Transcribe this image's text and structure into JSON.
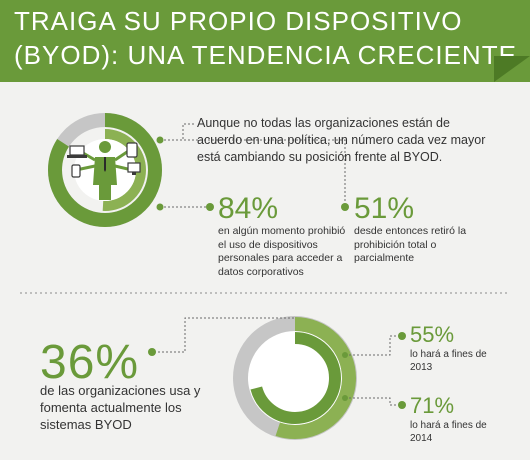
{
  "header": {
    "title_line1": "TRAIGA SU PROPIO DISPOSITIVO",
    "title_line2": "(BYOD): UNA TENDENCIA CRECIENTE"
  },
  "intro_text": "Aunque no todas las organizaciones están de acuerdo en una política, un número cada vez mayor está cambiando su posición frente al BYOD.",
  "stats": {
    "s84": {
      "value": "84%",
      "text": "en algún momento prohibió el uso de dispositivos personales para acceder a datos corporativos"
    },
    "s51": {
      "value": "51%",
      "text": "desde entonces retiró la prohibición total o parcialmente"
    },
    "s36": {
      "value": "36%",
      "text": "de las organizaciones usa y fomenta actualmente los sistemas BYOD"
    },
    "s55": {
      "value": "55%",
      "text": "lo hará a fines de 2013"
    },
    "s71": {
      "value": "71%",
      "text": "lo hará a fines de 2014"
    }
  },
  "colors": {
    "green": "#6a9a3a",
    "light_green": "#a6c46a",
    "gray": "#c6c6c6",
    "dark_gray": "#5e5e5e"
  },
  "icons": [
    "businessman-icon",
    "laptop-icon",
    "tablet-icon",
    "phone-icon",
    "monitor-icon"
  ]
}
